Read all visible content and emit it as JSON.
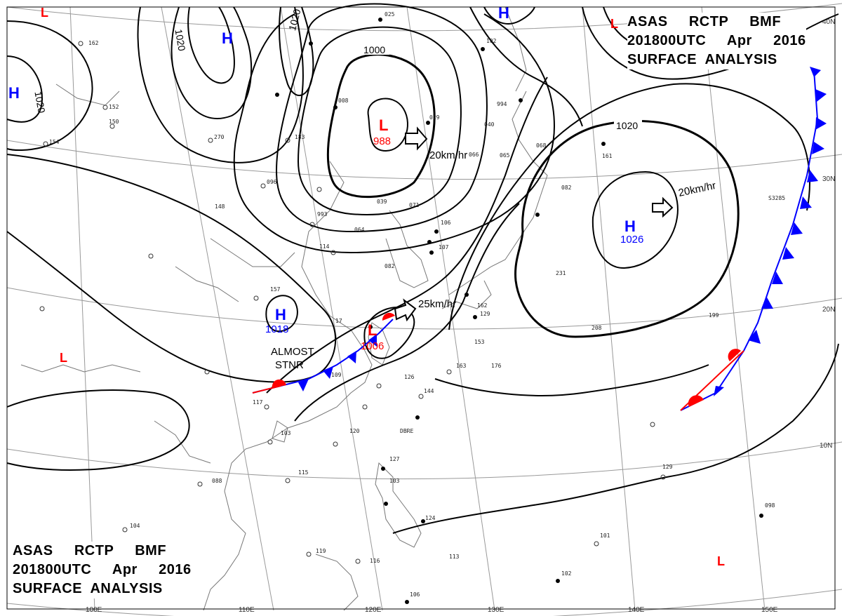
{
  "header": {
    "line1": "ASAS     RCTP     BMF",
    "line2": "201800UTC     Apr     2016",
    "line3": "SURFACE  ANALYSIS"
  },
  "footer": {
    "line1": "ASAS     RCTP     BMF",
    "line2": "201800UTC     Apr     2016",
    "line3": "SURFACE  ANALYSIS"
  },
  "isobar_labels": {
    "l1000": "1000",
    "l1020a": "1020",
    "l1020b": "1020",
    "l1020c": "1020",
    "l1020d": "1020"
  },
  "pressure_centers": {
    "low_main": {
      "symbol": "L",
      "value": "988"
    },
    "low_taiwan": {
      "symbol": "L",
      "value": "1006"
    },
    "high_pacific": {
      "symbol": "H",
      "value": "1026"
    },
    "high_china": {
      "symbol": "H",
      "value": "1018"
    },
    "high_nw": {
      "symbol": "H"
    },
    "high_ne": {
      "symbol": "H"
    },
    "high_w": {
      "symbol": "H"
    },
    "low_nw_corner": {
      "symbol": "L"
    },
    "low_ne_corner": {
      "symbol": "L"
    },
    "low_w": {
      "symbol": "L"
    },
    "low_se": {
      "symbol": "L"
    }
  },
  "motion": {
    "low_main": "20km/hr",
    "high_pacific": "20km/hr",
    "low_taiwan": "25km/hr",
    "stationary": "ALMOST",
    "stationary2": "STNR"
  },
  "latitude_labels": {
    "lat40": "40N",
    "lat30": "30N",
    "lat20": "20N",
    "lat10": "10N"
  },
  "longitude_labels": {
    "lon100": "100E",
    "lon110": "110E",
    "lon120": "120E",
    "lon130": "130E",
    "lon140": "140E",
    "lon150": "150E"
  },
  "station_codes": {
    "s1": "DBRE",
    "s2": "S3285"
  },
  "station_values": {
    "v1": "162",
    "v2": "150",
    "v3": "154",
    "v4": "152",
    "v5": "270",
    "v6": "183",
    "v7": "096",
    "v8": "008",
    "v9": "993",
    "v10": "064",
    "v11": "114",
    "v12": "157",
    "v13": "082",
    "v14": "148",
    "v15": "106",
    "v16": "107",
    "v17": "126",
    "v18": "109",
    "v19": "117",
    "v20": "103",
    "v21": "120",
    "v22": "115",
    "v23": "088",
    "v24": "104",
    "v25": "119",
    "v26": "116",
    "v27": "106",
    "v28": "113",
    "v29": "124",
    "v30": "127",
    "v31": "103",
    "v32": "144",
    "v33": "153",
    "v34": "163",
    "v35": "176",
    "v36": "162",
    "v37": "129",
    "v38": "231",
    "v39": "208",
    "v40": "199",
    "v41": "129",
    "v42": "101",
    "v43": "102",
    "v44": "098",
    "v45": "066",
    "v46": "994",
    "v47": "040",
    "v48": "065",
    "v49": "068",
    "v50": "102",
    "v51": "071",
    "v52": "039",
    "v53": "025",
    "v54": "029",
    "v55": "082",
    "v56": "161",
    "v57": "17"
  },
  "colors": {
    "low": "#ff0000",
    "high": "#0000ff",
    "isobar": "#000000",
    "grid": "#888888",
    "coast": "#777777"
  }
}
